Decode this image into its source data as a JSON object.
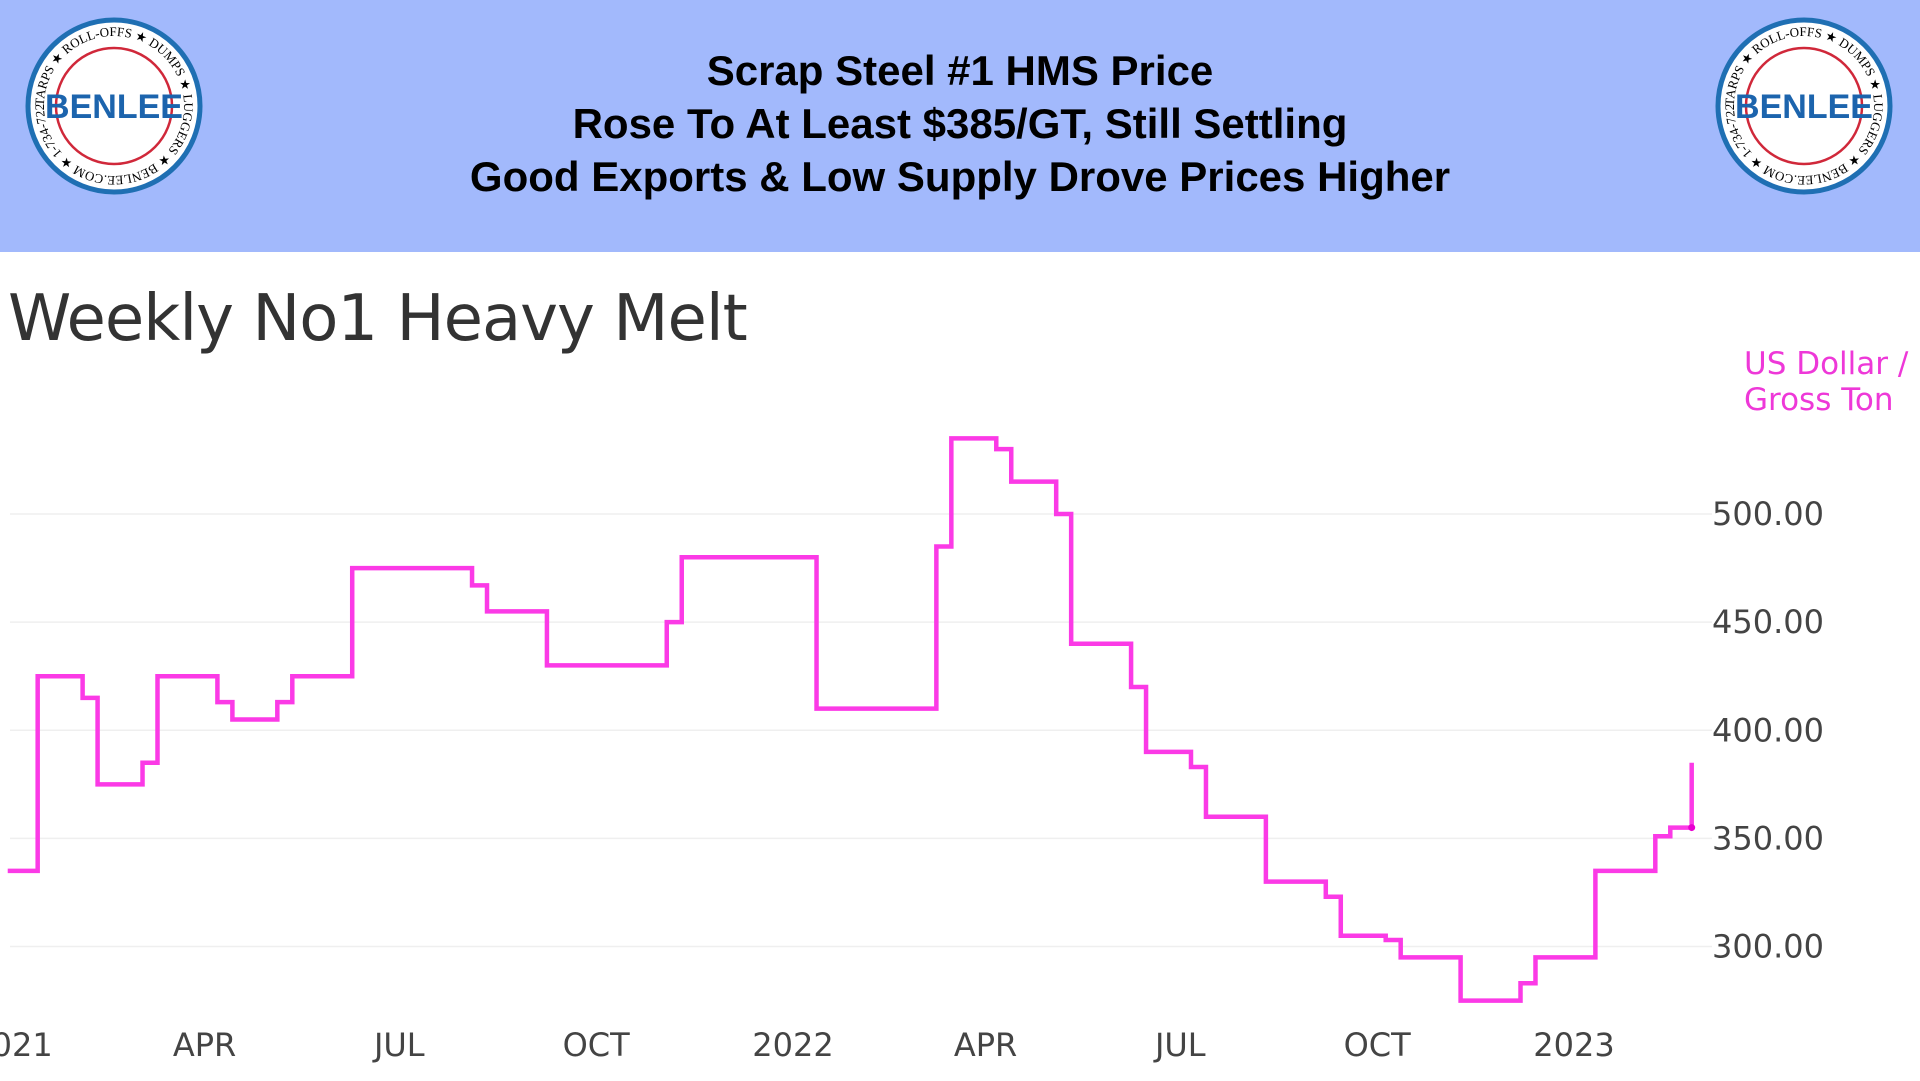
{
  "header": {
    "lines": [
      "Scrap Steel #1 HMS Price",
      "Rose To At Least $385/GT, Still Settling",
      "Good Exports & Low Supply Drove Prices Higher"
    ],
    "background": "#a2b9fc",
    "logo": {
      "brand": "BENLEE",
      "ring_text": "TARPS ★ ROLL-OFFS ★ DUMPS ★ LUGGERS ★ BENLEE.COM ★ 1-734-722-8100 ★ PARTS ★"
    }
  },
  "chart_data": {
    "type": "line",
    "step": true,
    "title": "Weekly No1 Heavy Melt",
    "ylabel": "US Dollar / Gross Ton",
    "ylabel_lines": [
      "US Dollar /",
      "Gross Ton"
    ],
    "color": "#fb3ae6",
    "grid": true,
    "y_axis_side": "right",
    "ylim": [
      265,
      545
    ],
    "yticks": [
      "300.00",
      "350.00",
      "400.00",
      "450.00",
      "500.00"
    ],
    "ytick_values": [
      300,
      350,
      400,
      450,
      500
    ],
    "xticks": [
      {
        "label": "2021",
        "date": "2021-01-01"
      },
      {
        "label": "APR",
        "date": "2021-04-01"
      },
      {
        "label": "JUL",
        "date": "2021-07-01"
      },
      {
        "label": "OCT",
        "date": "2021-10-01"
      },
      {
        "label": "2022",
        "date": "2022-01-01"
      },
      {
        "label": "APR",
        "date": "2022-04-01"
      },
      {
        "label": "JUL",
        "date": "2022-07-01"
      },
      {
        "label": "OCT",
        "date": "2022-10-01"
      },
      {
        "label": "2023",
        "date": "2023-01-01"
      }
    ],
    "series": [
      {
        "points": [
          [
            "2020-12-30",
            335
          ],
          [
            "2021-01-13",
            425
          ],
          [
            "2021-02-03",
            415
          ],
          [
            "2021-02-10",
            375
          ],
          [
            "2021-03-03",
            385
          ],
          [
            "2021-03-10",
            425
          ],
          [
            "2021-04-07",
            413
          ],
          [
            "2021-04-14",
            405
          ],
          [
            "2021-05-05",
            413
          ],
          [
            "2021-05-12",
            425
          ],
          [
            "2021-06-09",
            475
          ],
          [
            "2021-08-04",
            467
          ],
          [
            "2021-08-11",
            455
          ],
          [
            "2021-09-08",
            430
          ],
          [
            "2021-11-03",
            450
          ],
          [
            "2021-11-10",
            480
          ],
          [
            "2022-01-12",
            410
          ],
          [
            "2022-03-09",
            485
          ],
          [
            "2022-03-16",
            535
          ],
          [
            "2022-04-06",
            530
          ],
          [
            "2022-04-13",
            515
          ],
          [
            "2022-05-04",
            500
          ],
          [
            "2022-05-11",
            440
          ],
          [
            "2022-06-08",
            420
          ],
          [
            "2022-06-15",
            390
          ],
          [
            "2022-07-06",
            383
          ],
          [
            "2022-07-13",
            360
          ],
          [
            "2022-08-10",
            330
          ],
          [
            "2022-09-07",
            323
          ],
          [
            "2022-09-14",
            305
          ],
          [
            "2022-10-05",
            303
          ],
          [
            "2022-10-12",
            295
          ],
          [
            "2022-11-09",
            275
          ],
          [
            "2022-12-07",
            283
          ],
          [
            "2022-12-14",
            295
          ],
          [
            "2023-01-11",
            335
          ],
          [
            "2023-02-08",
            351
          ],
          [
            "2023-02-15",
            355
          ],
          [
            "2023-02-25",
            355
          ],
          [
            "2023-02-25",
            385
          ]
        ]
      }
    ]
  }
}
